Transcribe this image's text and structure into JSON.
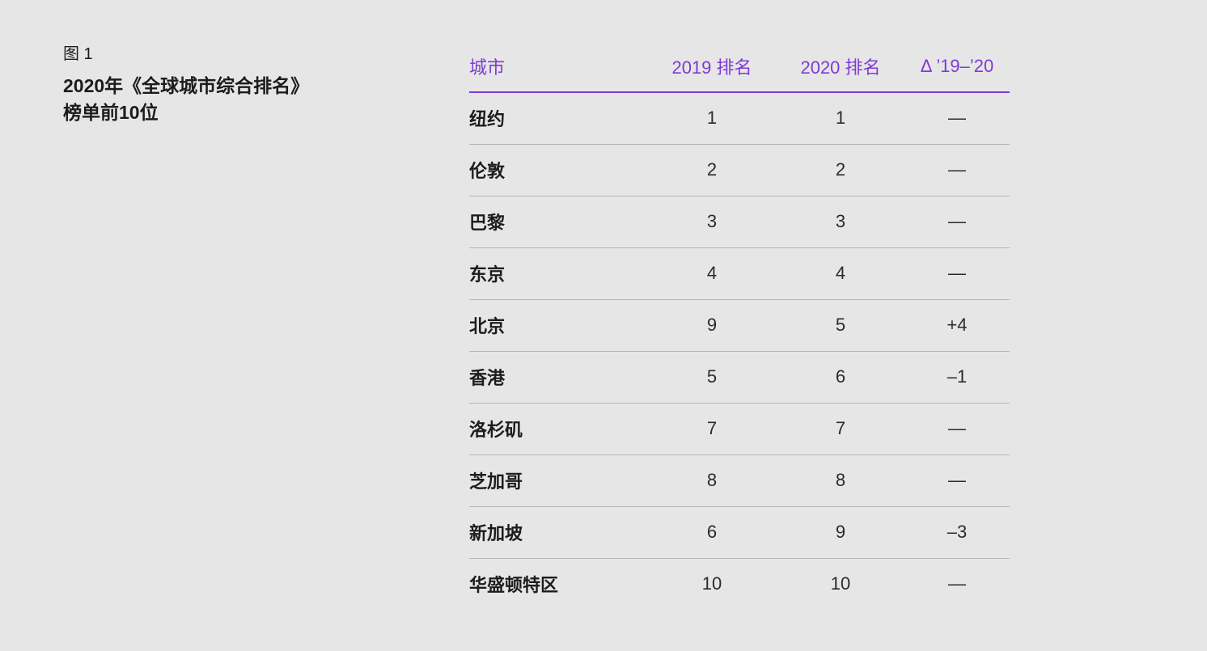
{
  "colors": {
    "background": "#e6e6e6",
    "accent_purple": "#7d3bd6",
    "text": "#1c1c1c",
    "row_divider": "#b5b5b5"
  },
  "figure": {
    "label": "图 1",
    "title_line1": "2020年《全球城市综合排名》",
    "title_line2": "榜单前10位"
  },
  "chart_data": {
    "type": "table",
    "figure_label": "图 1",
    "title": "2020年《全球城市综合排名》榜单前10位",
    "columns": [
      "城市",
      "2019 排名",
      "2020 排名",
      "Δ ’19–’20"
    ],
    "rows": [
      [
        "纽约",
        "1",
        "1",
        "—"
      ],
      [
        "伦敦",
        "2",
        "2",
        "—"
      ],
      [
        "巴黎",
        "3",
        "3",
        "—"
      ],
      [
        "东京",
        "4",
        "4",
        "—"
      ],
      [
        "北京",
        "9",
        "5",
        "+4"
      ],
      [
        "香港",
        "5",
        "6",
        "–1"
      ],
      [
        "洛杉矶",
        "7",
        "7",
        "—"
      ],
      [
        "芝加哥",
        "8",
        "8",
        "—"
      ],
      [
        "新加坡",
        "6",
        "9",
        "–3"
      ],
      [
        "华盛顿特区",
        "10",
        "10",
        "—"
      ]
    ],
    "layout_hints": {
      "header_text_color": "#7d3bd6",
      "header_rule_color": "#7d3bd6",
      "city_column_align": "left",
      "rank_columns_align": "center",
      "grid": "horizontal row dividers only, no divider after last row"
    }
  }
}
